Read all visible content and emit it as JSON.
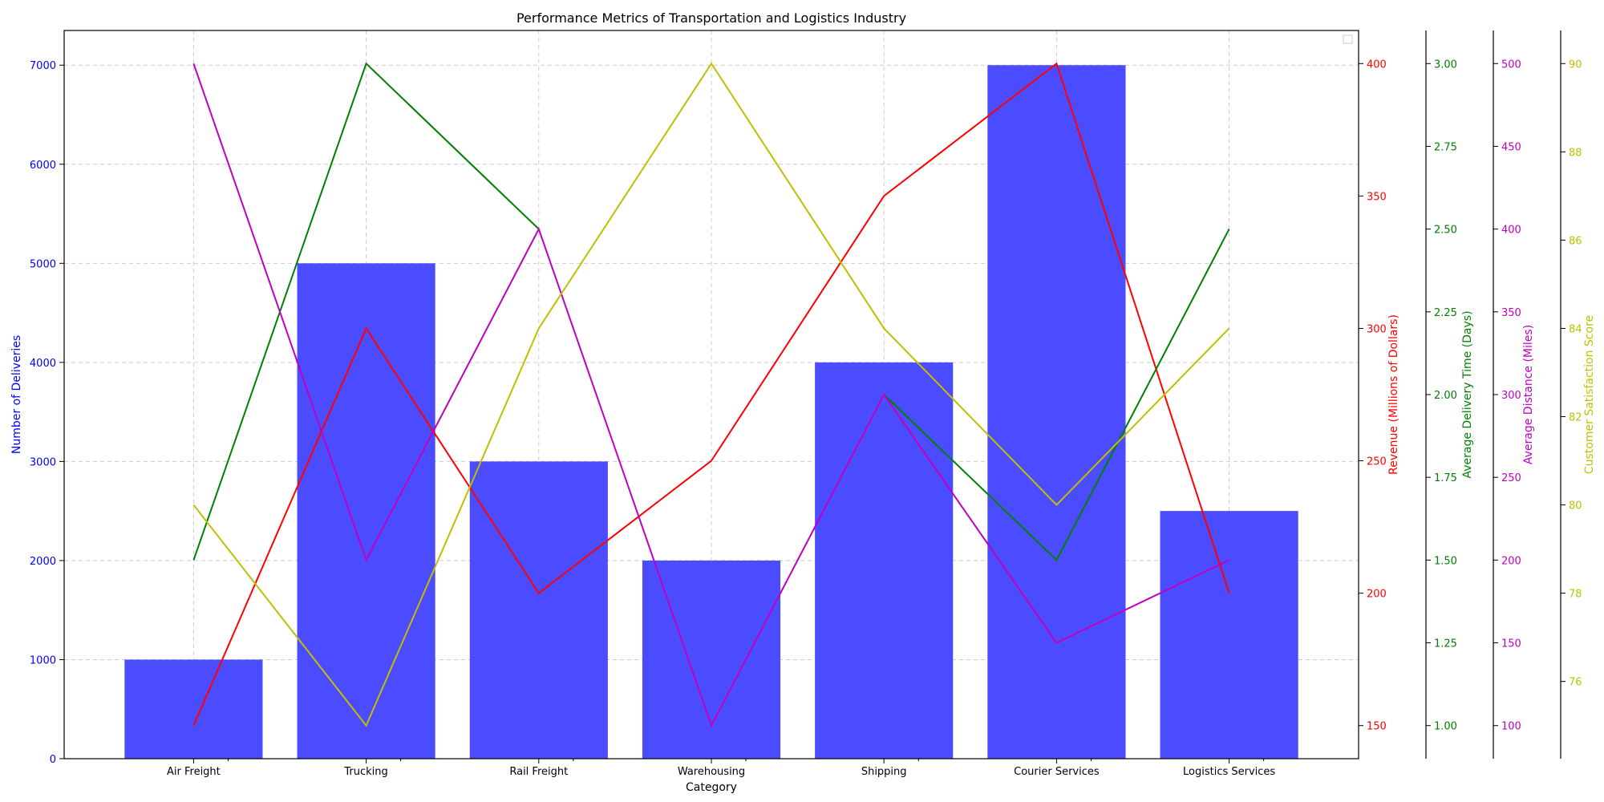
{
  "chart_data": {
    "type": "bar",
    "title": "Performance Metrics of Transportation and Logistics Industry",
    "xlabel": "Category",
    "categories": [
      "Air Freight",
      "Trucking",
      "Rail Freight",
      "Warehousing",
      "Shipping",
      "Courier Services",
      "Logistics Services"
    ],
    "grid": true,
    "bars": {
      "ylabel": "Number of Deliveries",
      "color": "#4b4bff",
      "values": [
        1000,
        5000,
        3000,
        2000,
        4000,
        7000,
        2500
      ],
      "ylim": [
        0,
        7350
      ],
      "ticks": [
        0,
        1000,
        2000,
        3000,
        4000,
        5000,
        6000,
        7000
      ],
      "tick_labels": [
        "0",
        "1000",
        "2000",
        "3000",
        "4000",
        "5000",
        "6000",
        "7000"
      ],
      "axis_color": "#0000ff"
    },
    "lines": [
      {
        "ylabel": "Revenue (Millions of Dollars)",
        "color": "#ff0000",
        "values": [
          150,
          300,
          200,
          250,
          350,
          400,
          200
        ],
        "ylim": [
          137.5,
          412.5
        ],
        "ticks": [
          150,
          200,
          250,
          300,
          350,
          400
        ],
        "tick_labels": [
          "150",
          "200",
          "250",
          "300",
          "350",
          "400"
        ]
      },
      {
        "ylabel": "Average Delivery Time (Days)",
        "color": "#008000",
        "values": [
          1.5,
          3.0,
          2.5,
          null,
          2.0,
          1.5,
          2.5
        ],
        "ylim": [
          0.9,
          3.1
        ],
        "ticks": [
          1.0,
          1.25,
          1.5,
          1.75,
          2.0,
          2.25,
          2.5,
          2.75,
          3.0
        ],
        "tick_labels": [
          "1.00",
          "1.25",
          "1.50",
          "1.75",
          "2.00",
          "2.25",
          "2.50",
          "2.75",
          "3.00"
        ]
      },
      {
        "ylabel": "Average Distance (Miles)",
        "color": "#bf00bf",
        "values": [
          500,
          200,
          400,
          100,
          300,
          150,
          200
        ],
        "ylim": [
          80,
          520
        ],
        "ticks": [
          100,
          150,
          200,
          250,
          300,
          350,
          400,
          450,
          500
        ],
        "tick_labels": [
          "100",
          "150",
          "200",
          "250",
          "300",
          "350",
          "400",
          "450",
          "500"
        ]
      },
      {
        "ylabel": "Customer Satisfaction Score",
        "color": "#bfbf00",
        "values": [
          80,
          75,
          84,
          90,
          84,
          80,
          84
        ],
        "ylim": [
          74.25,
          90.75
        ],
        "ticks": [
          76,
          78,
          80,
          82,
          84,
          86,
          88,
          90
        ],
        "tick_labels": [
          "76",
          "78",
          "80",
          "82",
          "84",
          "86",
          "88",
          "90"
        ]
      }
    ]
  }
}
